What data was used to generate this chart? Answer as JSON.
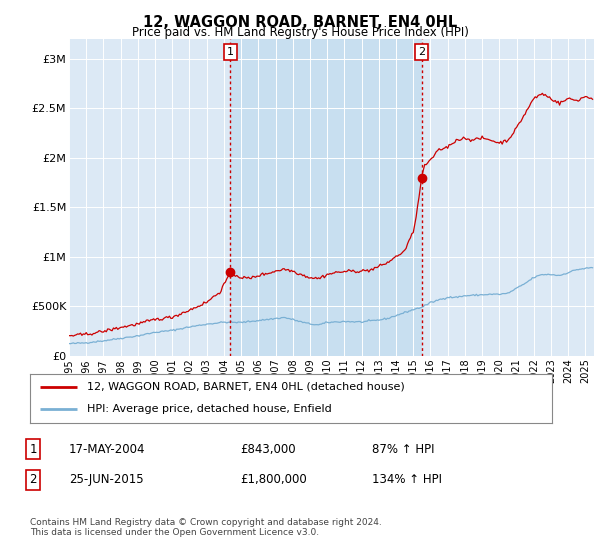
{
  "title": "12, WAGGON ROAD, BARNET, EN4 0HL",
  "subtitle": "Price paid vs. HM Land Registry's House Price Index (HPI)",
  "xlim_start": 1995.0,
  "xlim_end": 2025.5,
  "ylim": [
    0,
    3200000
  ],
  "yticks": [
    0,
    500000,
    1000000,
    1500000,
    2000000,
    2500000,
    3000000
  ],
  "ytick_labels": [
    "£0",
    "£500K",
    "£1M",
    "£1.5M",
    "£2M",
    "£2.5M",
    "£3M"
  ],
  "xticks": [
    1995,
    1996,
    1997,
    1998,
    1999,
    2000,
    2001,
    2002,
    2003,
    2004,
    2005,
    2006,
    2007,
    2008,
    2009,
    2010,
    2011,
    2012,
    2013,
    2014,
    2015,
    2016,
    2017,
    2018,
    2019,
    2020,
    2021,
    2022,
    2023,
    2024,
    2025
  ],
  "background_color": "#dce9f5",
  "shade_color": "#c8dff0",
  "outer_bg_color": "#ffffff",
  "red_line_color": "#cc0000",
  "blue_line_color": "#7ab0d4",
  "vline_color": "#cc0000",
  "sale1_x": 2004.38,
  "sale1_y": 843000,
  "sale2_x": 2015.48,
  "sale2_y": 1800000,
  "legend_label_red": "12, WAGGON ROAD, BARNET, EN4 0HL (detached house)",
  "legend_label_blue": "HPI: Average price, detached house, Enfield",
  "table_row1": [
    "1",
    "17-MAY-2004",
    "£843,000",
    "87% ↑ HPI"
  ],
  "table_row2": [
    "2",
    "25-JUN-2015",
    "£1,800,000",
    "134% ↑ HPI"
  ],
  "footer": "Contains HM Land Registry data © Crown copyright and database right 2024.\nThis data is licensed under the Open Government Licence v3.0."
}
